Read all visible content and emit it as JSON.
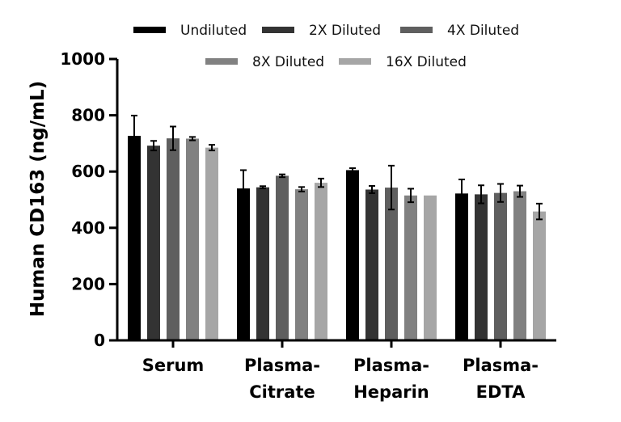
{
  "chart_data": {
    "type": "bar",
    "title": "",
    "xlabel": "",
    "ylabel": "Human CD163 (ng/mL)",
    "ylim": [
      0,
      1000
    ],
    "yticks": [
      "0",
      "200",
      "400",
      "600",
      "800",
      "1000"
    ],
    "categories": [
      [
        "Serum"
      ],
      [
        "Plasma-",
        "Citrate"
      ],
      [
        "Plasma-",
        "Heparin"
      ],
      [
        "Plasma-",
        "EDTA"
      ]
    ],
    "legend_position": "top",
    "grid": false,
    "series": [
      {
        "name": "Undiluted",
        "color": "#000000",
        "values": [
          727,
          540,
          605,
          522
        ],
        "errors": [
          72,
          65,
          7,
          50
        ]
      },
      {
        "name": "2X Diluted",
        "color": "#333333",
        "values": [
          692,
          544,
          536,
          519
        ],
        "errors": [
          17,
          4,
          13,
          32
        ]
      },
      {
        "name": "4X Diluted",
        "color": "#5f5f5f",
        "values": [
          718,
          585,
          543,
          524
        ],
        "errors": [
          42,
          5,
          78,
          32
        ]
      },
      {
        "name": "8X Diluted",
        "color": "#818181",
        "values": [
          717,
          537,
          515,
          530
        ],
        "errors": [
          6,
          8,
          24,
          20
        ]
      },
      {
        "name": "16X Diluted",
        "color": "#a6a6a6",
        "values": [
          685,
          560,
          515,
          458
        ],
        "errors": [
          10,
          15,
          0,
          28
        ]
      }
    ]
  }
}
